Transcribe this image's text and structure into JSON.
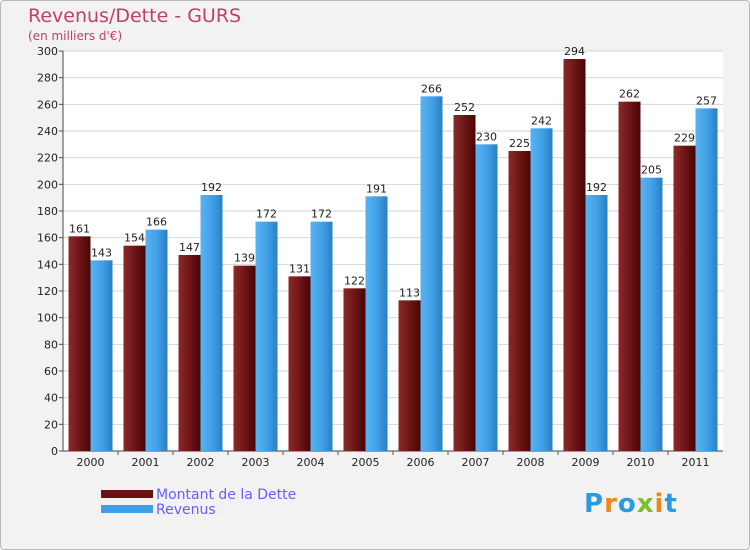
{
  "title": "Revenus/Dette - GURS",
  "subtitle": "(en milliers d'€)",
  "logo_text": "Proxiti",
  "colors": {
    "dette": "#6b1111",
    "revenus": "#3f9fe6",
    "title": "#c0406a",
    "legend_text": "#6a5cff"
  },
  "chart_data": {
    "type": "bar",
    "categories": [
      "2000",
      "2001",
      "2002",
      "2003",
      "2004",
      "2005",
      "2006",
      "2007",
      "2008",
      "2009",
      "2010",
      "2011"
    ],
    "series": [
      {
        "name": "Montant de la Dette",
        "values": [
          161,
          154,
          147,
          139,
          131,
          122,
          113,
          252,
          225,
          294,
          262,
          229
        ]
      },
      {
        "name": "Revenus",
        "values": [
          143,
          166,
          192,
          172,
          172,
          191,
          266,
          230,
          242,
          192,
          205,
          257
        ]
      }
    ],
    "ylim": [
      0,
      300
    ],
    "yticks": [
      0,
      20,
      40,
      60,
      80,
      100,
      120,
      140,
      160,
      180,
      200,
      220,
      240,
      260,
      280,
      300
    ],
    "grid": true,
    "legend_position": "bottom-left"
  }
}
